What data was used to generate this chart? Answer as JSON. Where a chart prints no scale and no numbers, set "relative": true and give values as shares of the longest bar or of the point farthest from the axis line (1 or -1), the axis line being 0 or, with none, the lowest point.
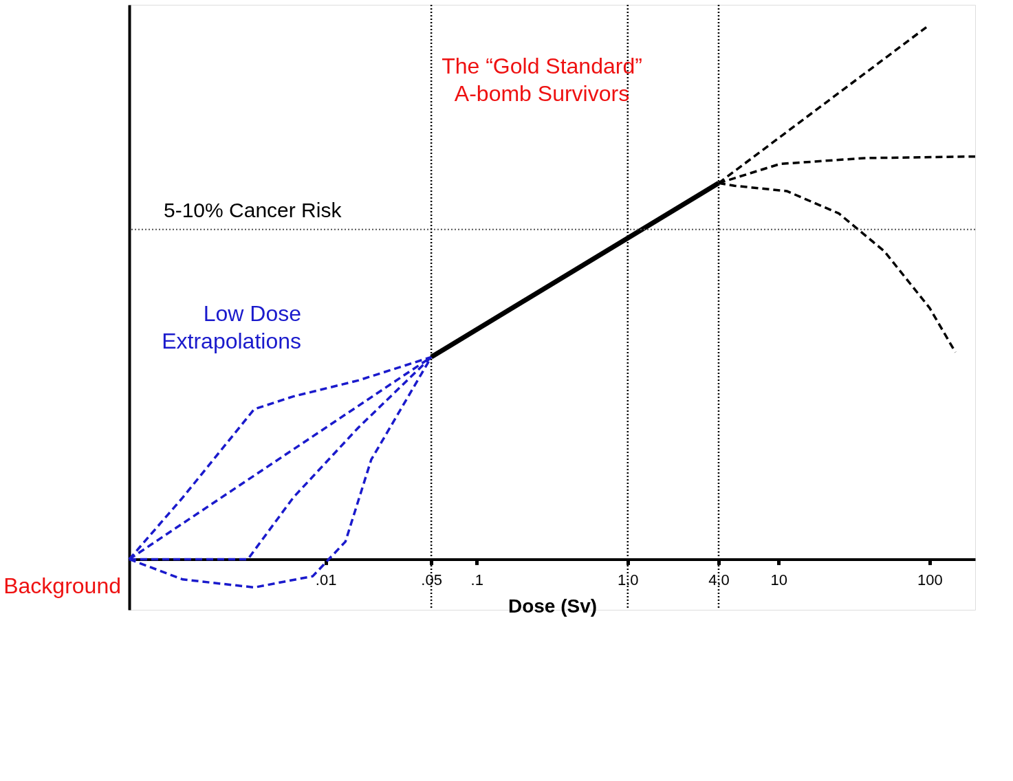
{
  "chart_data": {
    "type": "line",
    "relative": true,
    "log": "x",
    "xlabel": "Dose (Sv)",
    "xlim": [
      0.0005,
      200
    ],
    "xticks": [
      {
        "value": 0.01,
        "label": ".01"
      },
      {
        "value": 0.05,
        "label": ".05"
      },
      {
        "value": 0.1,
        "label": ".1"
      },
      {
        "value": 1,
        "label": "1.0"
      },
      {
        "value": 4,
        "label": "4.0"
      },
      10,
      100
    ],
    "tick_labels": "x",
    "grid": false,
    "legend": false,
    "marker": "none",
    "series": [
      {
        "color": "#000000",
        "line_style": "solid",
        "x": [
          0.05,
          4.0
        ],
        "values": [
          0.38,
          0.707
        ]
      },
      {
        "color": "#000000",
        "line_style": "dashed",
        "x": [
          4.0,
          95
        ],
        "values": [
          0.707,
          1.0
        ]
      },
      {
        "color": "#000000",
        "line_style": "dashed",
        "x": [
          4.0,
          10.2,
          37,
          200
        ],
        "values": [
          0.707,
          0.743,
          0.754,
          0.757
        ]
      },
      {
        "color": "#000000",
        "line_style": "dashed",
        "x": [
          4.0,
          5.1,
          11.3,
          25,
          50,
          100,
          148
        ],
        "values": [
          0.707,
          0.702,
          0.692,
          0.65,
          0.579,
          0.472,
          0.389
        ]
      },
      {
        "color": "#1a1acc",
        "line_style": "dashed",
        "x": [
          0.0005,
          0.00113,
          0.00336,
          0.0061,
          0.0164,
          0.05
        ],
        "values": [
          0,
          0.116,
          0.282,
          0.306,
          0.336,
          0.38
        ]
      },
      {
        "color": "#1a1acc",
        "line_style": "dashed",
        "x": [
          0.0005,
          0.05
        ],
        "values": [
          0,
          0.38
        ]
      },
      {
        "color": "#1a1acc",
        "line_style": "dashed",
        "x": [
          0.0005,
          0.00305,
          0.0061,
          0.0164,
          0.05
        ],
        "values": [
          0,
          0,
          0.116,
          0.247,
          0.38
        ]
      },
      {
        "color": "#1a1acc",
        "line_style": "dashed",
        "x": [
          0.0005,
          0.00113,
          0.00336,
          0.0082,
          0.0135,
          0.02,
          0.05
        ],
        "values": [
          0,
          -0.038,
          -0.053,
          -0.032,
          0.033,
          0.187,
          0.38
        ]
      }
    ],
    "ref_lines": [
      {
        "axis": "y",
        "value": 0.62,
        "label": "5-10% Cancer Risk",
        "color": "#555555",
        "line_style": "dotted"
      },
      {
        "axis": "x",
        "value": 0.05,
        "color": "#000000",
        "line_style": "dotted"
      },
      {
        "axis": "x",
        "value": 1.0,
        "color": "#000000",
        "line_style": "dotted"
      },
      {
        "axis": "x",
        "value": 4.0,
        "color": "#000000",
        "line_style": "dotted"
      }
    ],
    "annotations": [
      "The “Gold Standard”\nA-bomb Survivors",
      "Low Dose\nExtrapolations",
      {
        "text": "Background",
        "x": 0.0005,
        "y": 0
      }
    ]
  }
}
